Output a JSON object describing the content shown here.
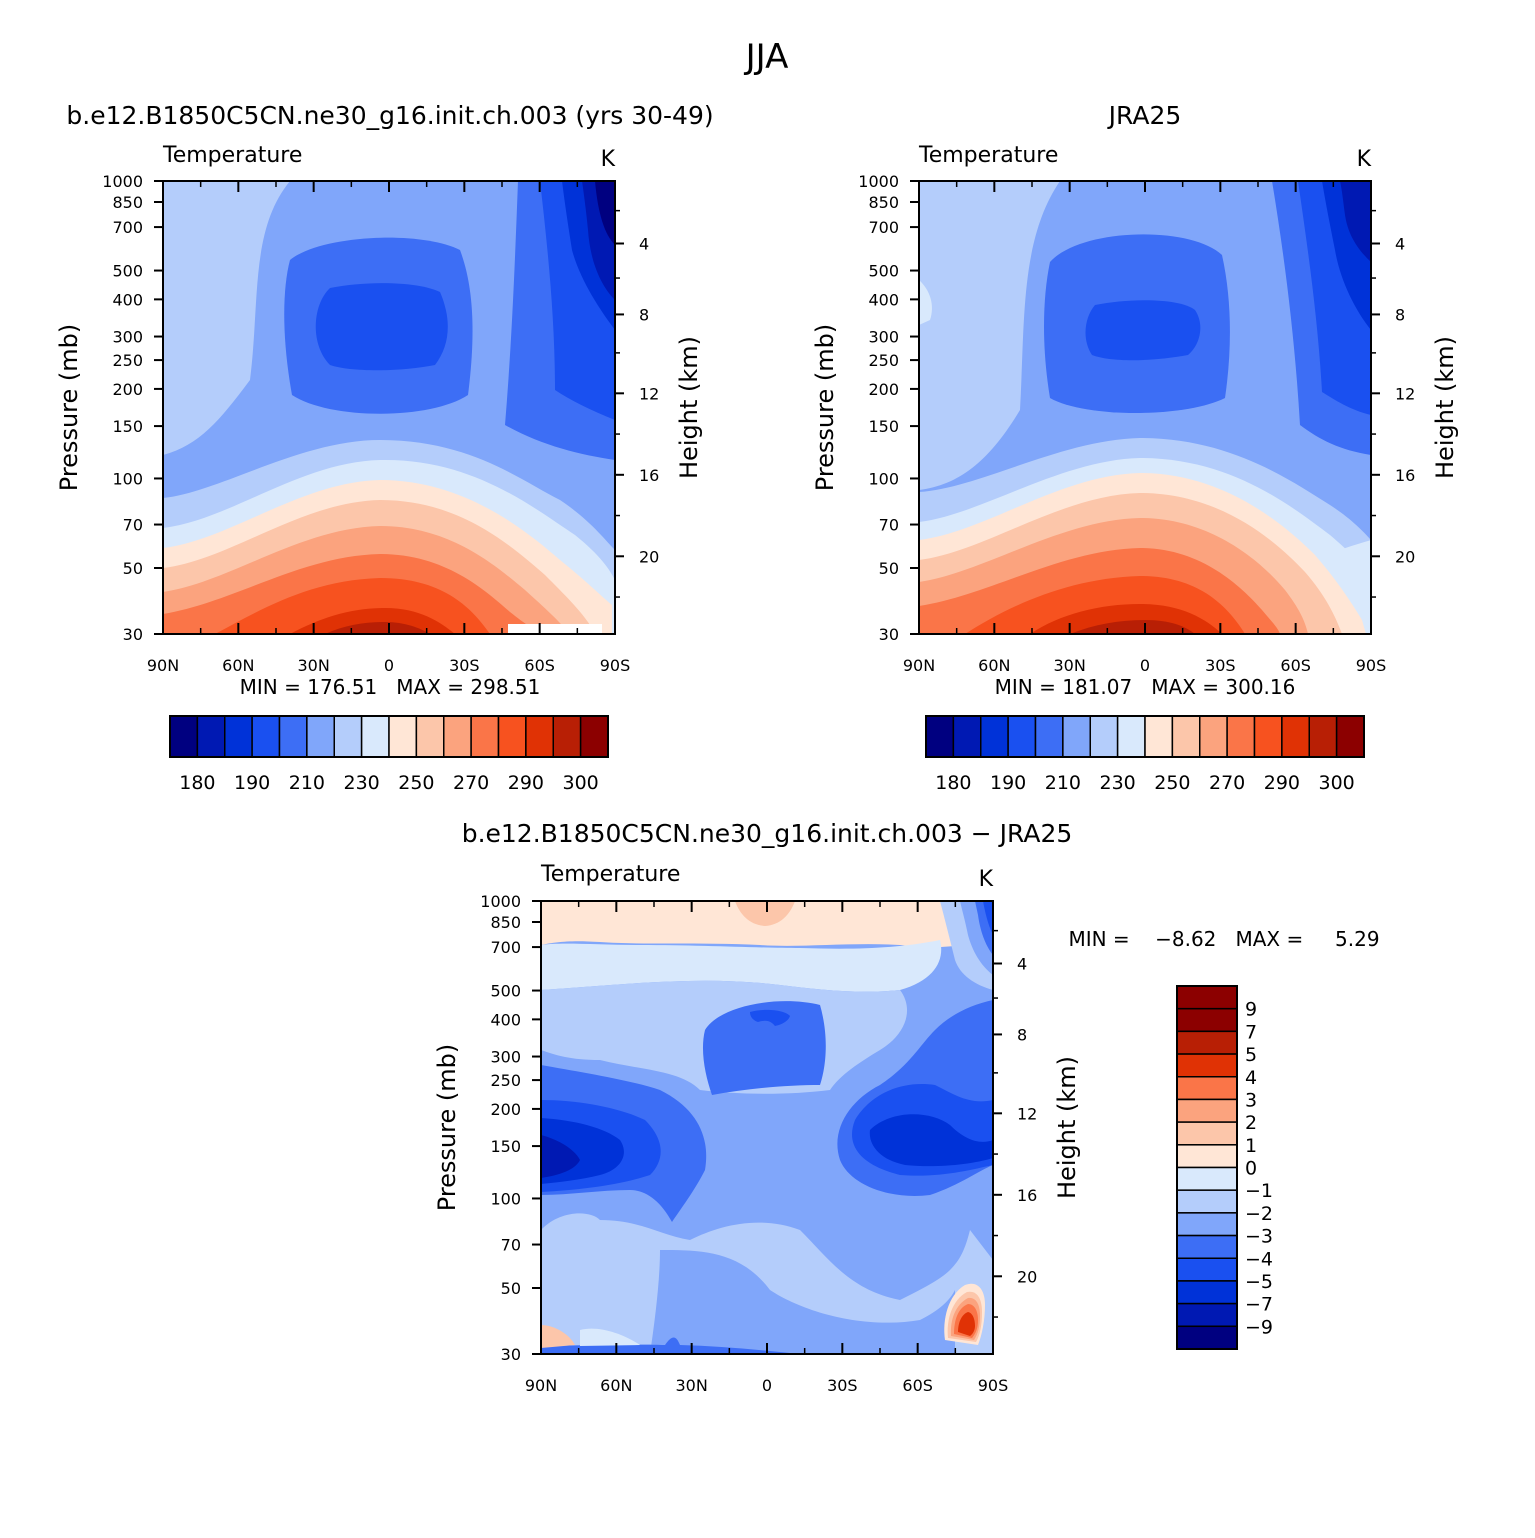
{
  "title": "JJA",
  "colors": {
    "p14": [
      "#000080",
      "#0019b3",
      "#0032d8",
      "#1a50f0",
      "#3d6ef5",
      "#80a6fa",
      "#b4cdfb",
      "#d9e9fc",
      "#ffe6d6",
      "#fcc6aa",
      "#fba37e",
      "#fa7548",
      "#f7521f",
      "#e03205",
      "#b81f05",
      "#8c0000"
    ],
    "diff": [
      "#000080",
      "#0019b3",
      "#0032d8",
      "#1a50f0",
      "#3d6ef5",
      "#80a6fa",
      "#b4cdfb",
      "#d9e9fc",
      "#ffe6d6",
      "#fcc6aa",
      "#fba37e",
      "#fa7548",
      "#e03205",
      "#b81f05",
      "#8c0000"
    ]
  },
  "chart_data": [
    {
      "type": "heatmap",
      "id": "model",
      "panel_title": "b.e12.B1850C5CN.ne30_g16.init.ch.003 (yrs 30-49)",
      "left_label": "Temperature",
      "right_label": "K",
      "ylabel": "Pressure (mb)",
      "y2label": "Height (km)",
      "xlim": [
        90,
        -90
      ],
      "x_ticks": [
        "90N",
        "60N",
        "30N",
        "0",
        "30S",
        "60S",
        "90S"
      ],
      "y_scale": "log",
      "ylim": [
        1000,
        30
      ],
      "y_ticks": [
        "30",
        "50",
        "70",
        "100",
        "150",
        "200",
        "250",
        "300",
        "400",
        "500",
        "700",
        "850",
        "1000"
      ],
      "y2_ticks": [
        "20",
        "16",
        "12",
        "8",
        "4"
      ],
      "stats": "MIN = 176.51   MAX = 298.51",
      "levels": [
        180,
        185,
        190,
        200,
        210,
        220,
        230,
        240,
        250,
        260,
        270,
        280,
        290,
        295,
        300
      ],
      "colorbar_labels": [
        "180",
        "190",
        "210",
        "230",
        "250",
        "270",
        "290",
        "300"
      ],
      "data_range": [
        176.51,
        298.51
      ]
    },
    {
      "type": "heatmap",
      "id": "obs",
      "panel_title": "JRA25",
      "left_label": "Temperature",
      "right_label": "K",
      "ylabel": "Pressure (mb)",
      "y2label": "Height (km)",
      "xlim": [
        90,
        -90
      ],
      "x_ticks": [
        "90N",
        "60N",
        "30N",
        "0",
        "30S",
        "60S",
        "90S"
      ],
      "y_scale": "log",
      "ylim": [
        1000,
        30
      ],
      "y_ticks": [
        "30",
        "50",
        "70",
        "100",
        "150",
        "200",
        "250",
        "300",
        "400",
        "500",
        "700",
        "850",
        "1000"
      ],
      "y2_ticks": [
        "20",
        "16",
        "12",
        "8",
        "4"
      ],
      "stats": "MIN = 181.07   MAX = 300.16",
      "levels": [
        180,
        185,
        190,
        200,
        210,
        220,
        230,
        240,
        250,
        260,
        270,
        280,
        290,
        295,
        300
      ],
      "colorbar_labels": [
        "180",
        "190",
        "210",
        "230",
        "250",
        "270",
        "290",
        "300"
      ],
      "data_range": [
        181.07,
        300.16
      ]
    },
    {
      "type": "heatmap",
      "id": "diff",
      "panel_title": "b.e12.B1850C5CN.ne30_g16.init.ch.003 − JRA25",
      "left_label": "Temperature",
      "right_label": "K",
      "ylabel": "Pressure (mb)",
      "y2label": "Height (km)",
      "xlim": [
        90,
        -90
      ],
      "x_ticks": [
        "90N",
        "60N",
        "30N",
        "0",
        "30S",
        "60S",
        "90S"
      ],
      "y_scale": "log",
      "ylim": [
        1000,
        30
      ],
      "y_ticks": [
        "30",
        "50",
        "70",
        "100",
        "150",
        "200",
        "250",
        "300",
        "400",
        "500",
        "700",
        "850",
        "1000"
      ],
      "y2_ticks": [
        "20",
        "16",
        "12",
        "8",
        "4"
      ],
      "stats": "MIN =    −8.62   MAX =     5.29",
      "levels": [
        -9,
        -7,
        -5,
        -4,
        -3,
        -2,
        -1,
        0,
        1,
        2,
        3,
        4,
        5,
        7,
        9
      ],
      "colorbar_labels": [
        "9",
        "7",
        "5",
        "4",
        "3",
        "2",
        "1",
        "0",
        "−1",
        "−2",
        "−3",
        "−4",
        "−5",
        "−7",
        "−9"
      ],
      "data_range": [
        -8.62,
        5.29
      ]
    }
  ]
}
